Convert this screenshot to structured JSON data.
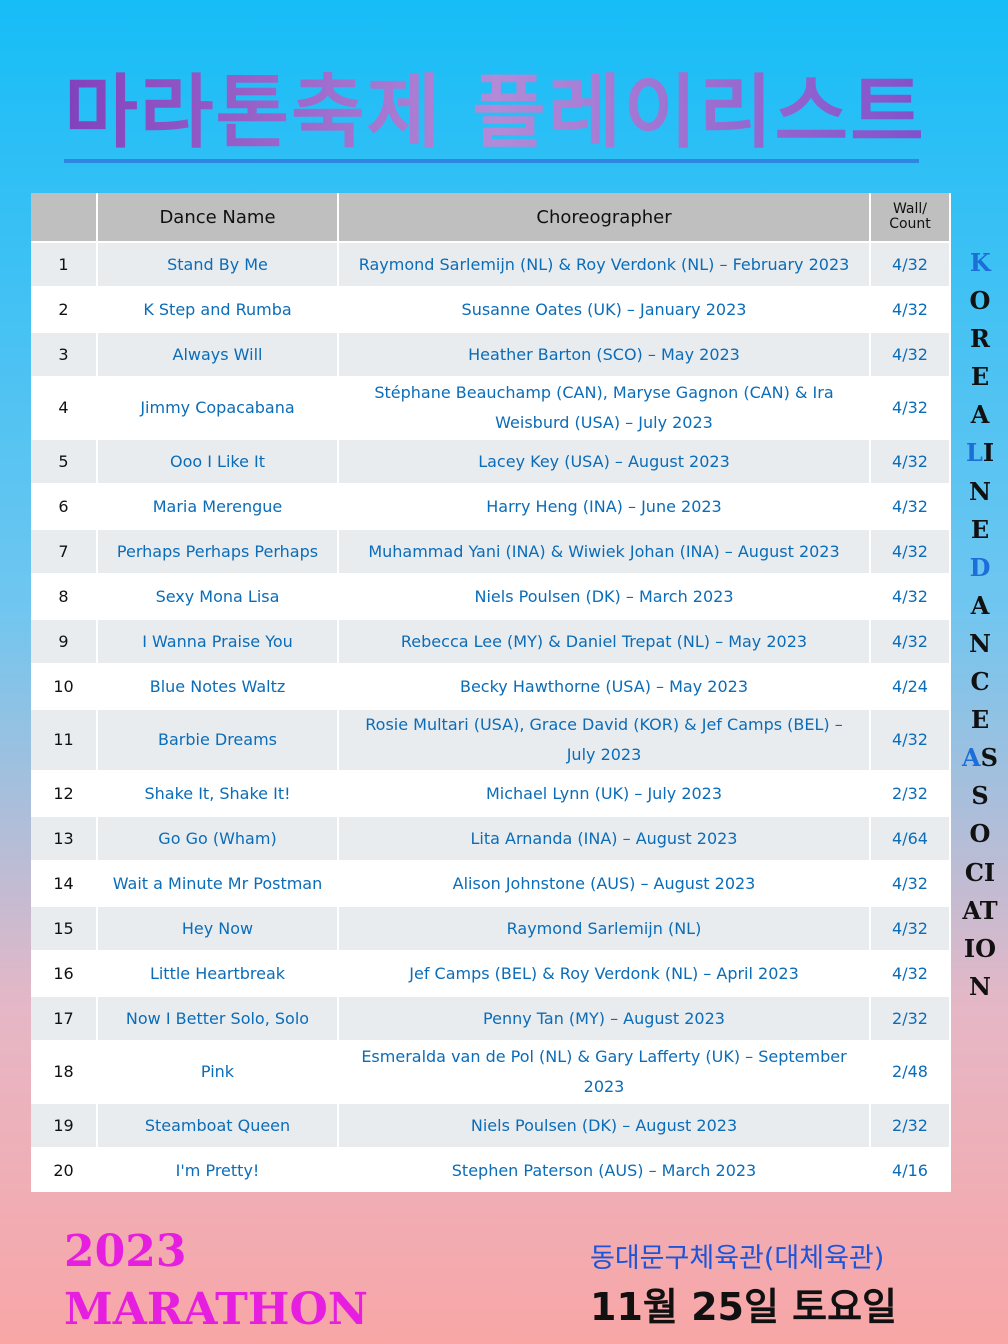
{
  "header": {
    "title": "마라톤축제 플레이리스트"
  },
  "table": {
    "columns": [
      "",
      "Dance Name",
      "Choreographer",
      "Wall/ Count"
    ],
    "rows": [
      [
        1,
        "Stand By Me",
        "Raymond Sarlemijn (NL) & Roy Verdonk (NL) – February 2023",
        "4/32"
      ],
      [
        2,
        "K Step and Rumba",
        "Susanne Oates (UK) – January 2023",
        "4/32"
      ],
      [
        3,
        "Always Will",
        "Heather Barton (SCO) – May 2023",
        "4/32"
      ],
      [
        4,
        "Jimmy Copacabana",
        "Stéphane Beauchamp (CAN), Maryse Gagnon (CAN) & Ira Weisburd (USA) – July 2023",
        "4/32"
      ],
      [
        5,
        "Ooo I Like It",
        "Lacey Key (USA) – August 2023",
        "4/32"
      ],
      [
        6,
        "Maria Merengue",
        "Harry Heng (INA) – June 2023",
        "4/32"
      ],
      [
        7,
        "Perhaps Perhaps Perhaps",
        "Muhammad Yani (INA) & Wiwiek Johan (INA) – August 2023",
        "4/32"
      ],
      [
        8,
        "Sexy Mona Lisa",
        "Niels Poulsen (DK) – March 2023",
        "4/32"
      ],
      [
        9,
        "I Wanna Praise You",
        "Rebecca Lee (MY) & Daniel Trepat (NL) – May 2023",
        "4/32"
      ],
      [
        10,
        "Blue Notes Waltz",
        "Becky Hawthorne (USA) – May 2023",
        "4/24"
      ],
      [
        11,
        "Barbie Dreams",
        "Rosie Multari (USA), Grace David (KOR) & Jef Camps (BEL) – July 2023",
        "4/32"
      ],
      [
        12,
        "Shake It, Shake It!",
        "Michael Lynn (UK) – July 2023",
        "2/32"
      ],
      [
        13,
        "Go Go (Wham)",
        "Lita Arnanda (INA) – August 2023",
        "4/64"
      ],
      [
        14,
        "Wait a Minute Mr Postman",
        "Alison Johnstone (AUS) – August 2023",
        "4/32"
      ],
      [
        15,
        "Hey Now",
        "Raymond Sarlemijn (NL)",
        "4/32"
      ],
      [
        16,
        "Little Heartbreak",
        "Jef Camps (BEL) & Roy Verdonk (NL) – April 2023",
        "4/32"
      ],
      [
        17,
        "Now I Better Solo, Solo",
        "Penny Tan (MY) – August 2023",
        "2/32"
      ],
      [
        18,
        "Pink",
        "Esmeralda van de Pol (NL) & Gary Lafferty (UK) – September 2023",
        "2/48"
      ],
      [
        19,
        "Steamboat Queen",
        "Niels Poulsen (DK) – August 2023",
        "2/32"
      ],
      [
        20,
        "I'm Pretty!",
        "Stephen Paterson (AUS) – March 2023",
        "4/16"
      ]
    ]
  },
  "side_text": [
    "KOREA",
    "LINE",
    "DANCE",
    "ASSOCIATION"
  ],
  "footer": {
    "year": "2023",
    "event": "MARATHON",
    "venue": "동대문구체육관(대체육관)",
    "date": "11월 25일 토요일"
  }
}
